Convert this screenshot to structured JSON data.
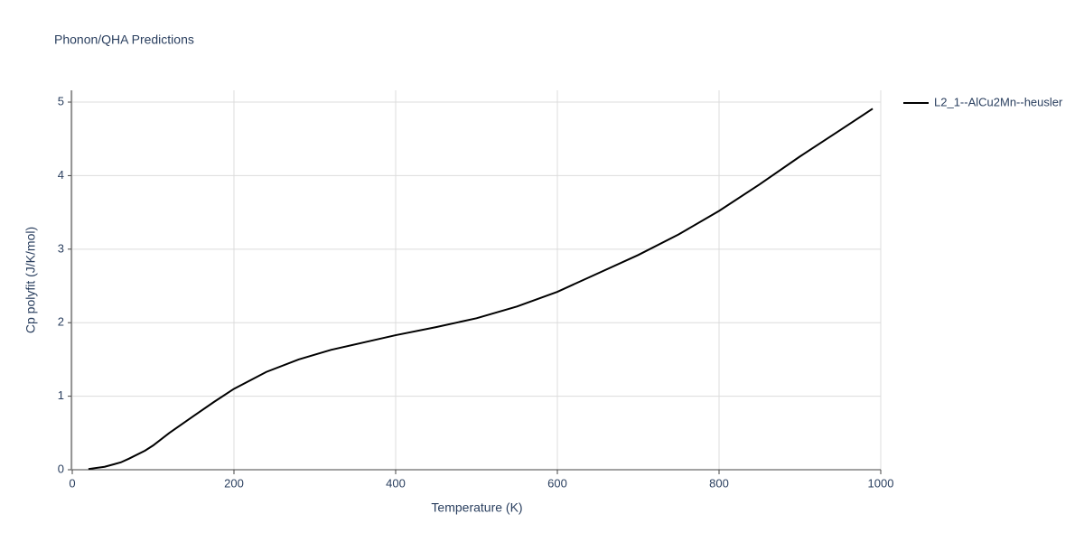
{
  "chart_data": {
    "type": "line",
    "title": "Phonon/QHA Predictions",
    "xlabel": "Temperature (K)",
    "ylabel": "Cp polyfit (J/K/mol)",
    "x": [
      20,
      40,
      60,
      70,
      90,
      100,
      120,
      150,
      175,
      200,
      240,
      280,
      320,
      360,
      400,
      450,
      500,
      550,
      600,
      640,
      700,
      750,
      800,
      850,
      900,
      950,
      990
    ],
    "series": [
      {
        "name": "L2_1--AlCu2Mn--heusler",
        "color": "#000000",
        "values": [
          0.01,
          0.04,
          0.1,
          0.15,
          0.26,
          0.33,
          0.5,
          0.73,
          0.92,
          1.1,
          1.33,
          1.5,
          1.63,
          1.73,
          1.83,
          1.94,
          2.06,
          2.22,
          2.42,
          2.62,
          2.92,
          3.2,
          3.52,
          3.88,
          4.26,
          4.62,
          4.91
        ]
      }
    ],
    "xlim": [
      0,
      1000
    ],
    "xticks": [
      0,
      200,
      400,
      600,
      800,
      1000
    ],
    "ylim": [
      0,
      5.16
    ],
    "yticks": [
      0,
      1,
      2,
      3,
      4,
      5
    ],
    "grid": true,
    "legend": "right"
  }
}
